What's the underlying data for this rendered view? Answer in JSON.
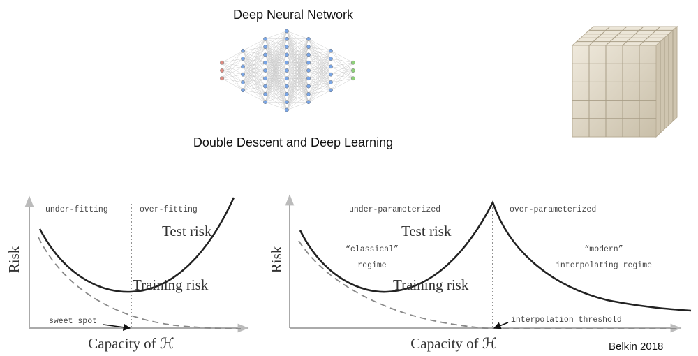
{
  "network_title": "Deep Neural Network",
  "subtitle": "Double Descent and Deep Learning",
  "left_plot": {
    "left_region": "under-fitting",
    "right_region": "over-fitting",
    "test_label": "Test risk",
    "train_label": "Training risk",
    "y_label": "Risk",
    "point_label": "sweet spot",
    "x_label": "Capacity of ℋ"
  },
  "right_plot": {
    "left_region": "under-parameterized",
    "right_region": "over-parameterized",
    "test_label": "Test risk",
    "classical_lines": [
      "“classical”",
      "regime"
    ],
    "modern_lines": [
      "“modern”",
      "interpolating regime"
    ],
    "train_label": "Training risk",
    "point_label": "interpolation threshold",
    "y_label": "Risk",
    "x_label": "Capacity of ℋ"
  },
  "citation": "Belkin 2018"
}
